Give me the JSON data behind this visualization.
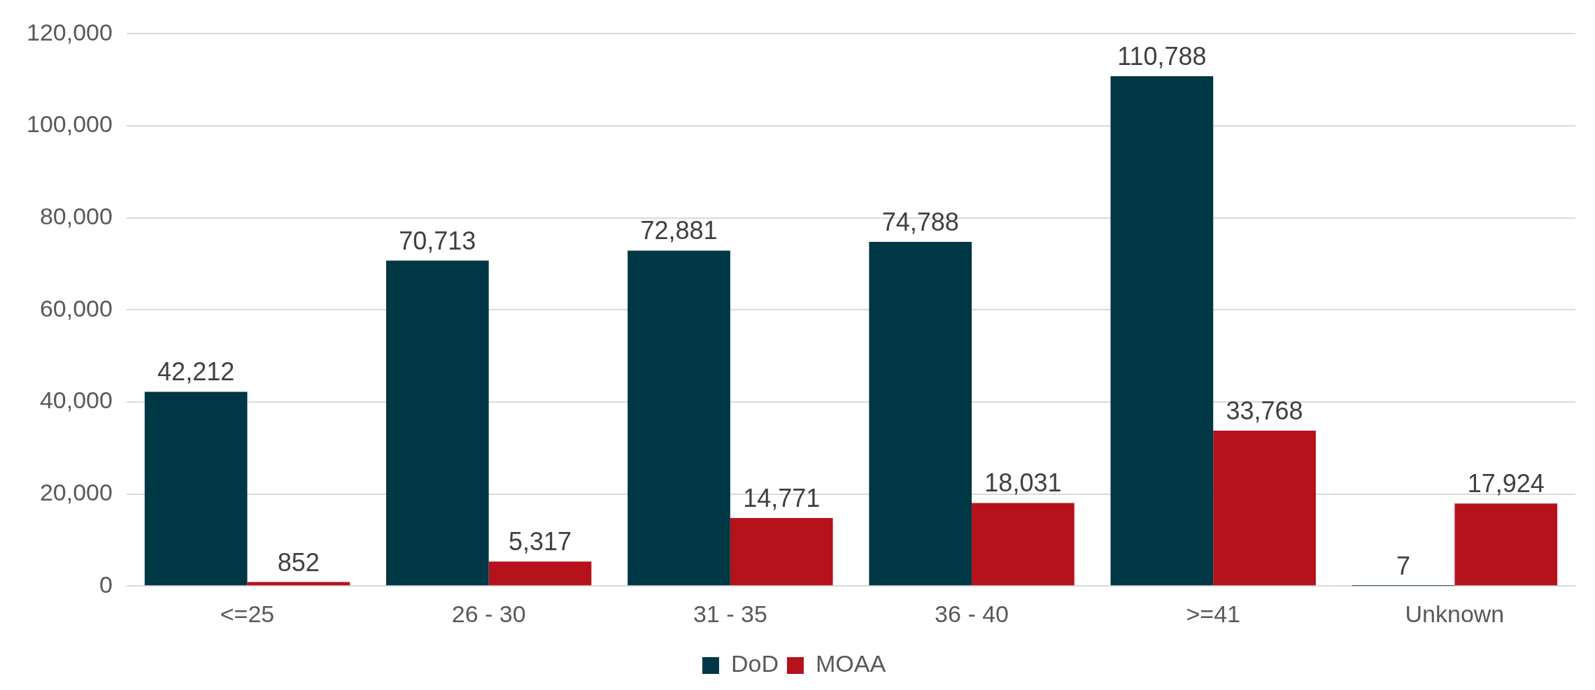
{
  "chart_data": {
    "type": "bar",
    "categories": [
      "<=25",
      "26 - 30",
      "31 - 35",
      "36 - 40",
      ">=41",
      "Unknown"
    ],
    "series": [
      {
        "name": "DoD",
        "color": "#003745",
        "values": [
          42212,
          70713,
          72881,
          74788,
          110788,
          7
        ],
        "value_labels": [
          "42,212",
          "70,713",
          "72,881",
          "74,788",
          "110,788",
          "7"
        ]
      },
      {
        "name": "MOAA",
        "color": "#b5121b",
        "values": [
          852,
          5317,
          14771,
          18031,
          33768,
          17924
        ],
        "value_labels": [
          "852",
          "5,317",
          "14,771",
          "18,031",
          "33,768",
          "17,924"
        ]
      }
    ],
    "ylim": [
      0,
      120000
    ],
    "yticks": [
      {
        "value": 0,
        "label": "0"
      },
      {
        "value": 20000,
        "label": "20,000"
      },
      {
        "value": 40000,
        "label": "40,000"
      },
      {
        "value": 60000,
        "label": "60,000"
      },
      {
        "value": 80000,
        "label": "80,000"
      },
      {
        "value": 100000,
        "label": "100,000"
      },
      {
        "value": 120000,
        "label": "120,000"
      }
    ],
    "grid": "y",
    "legend": "bottom"
  }
}
